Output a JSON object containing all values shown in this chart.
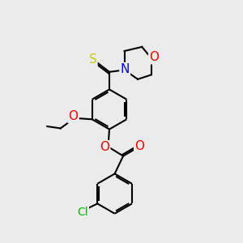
{
  "bg_color": "#ebebeb",
  "bond_color": "#000000",
  "atom_colors": {
    "S": "#cccc00",
    "N": "#0000ff",
    "O": "#ff0000",
    "Cl": "#00bb00",
    "C": "#000000"
  },
  "font_size": 9,
  "line_width": 1.5
}
